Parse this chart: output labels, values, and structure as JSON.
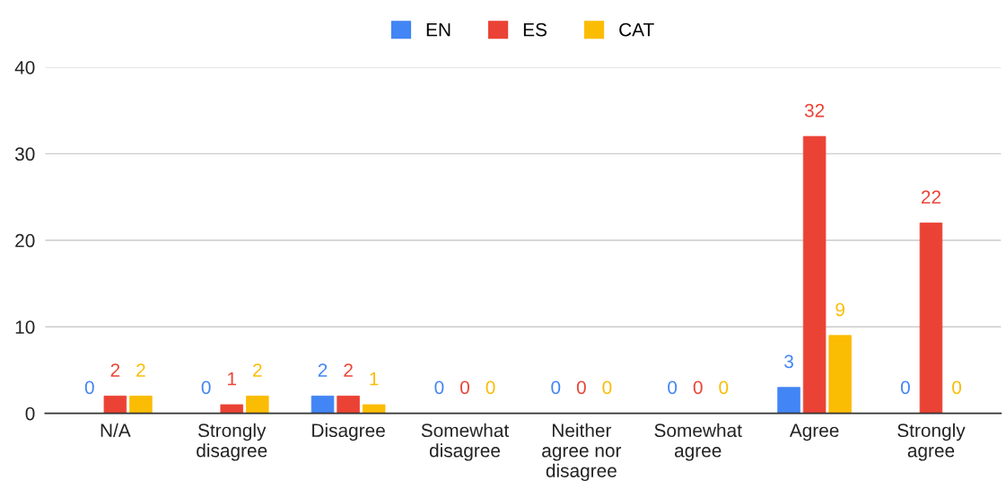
{
  "chart_data": {
    "type": "bar",
    "categories": [
      "N/A",
      "Strongly disagree",
      "Disagree",
      "Somewhat disagree",
      "Neither agree nor disagree",
      "Somewhat agree",
      "Agree",
      "Strongly agree"
    ],
    "series": [
      {
        "name": "EN",
        "color": "#4285f4",
        "values": [
          0,
          0,
          2,
          0,
          0,
          0,
          3,
          0
        ]
      },
      {
        "name": "ES",
        "color": "#ea4335",
        "values": [
          2,
          1,
          2,
          0,
          0,
          0,
          32,
          22
        ]
      },
      {
        "name": "CAT",
        "color": "#fbbc04",
        "values": [
          2,
          2,
          1,
          0,
          0,
          0,
          9,
          0
        ]
      }
    ],
    "ylim": [
      0,
      40
    ],
    "yticks": [
      0,
      10,
      20,
      30,
      40
    ],
    "grid": "y",
    "legend": "top",
    "data_labels": true
  }
}
